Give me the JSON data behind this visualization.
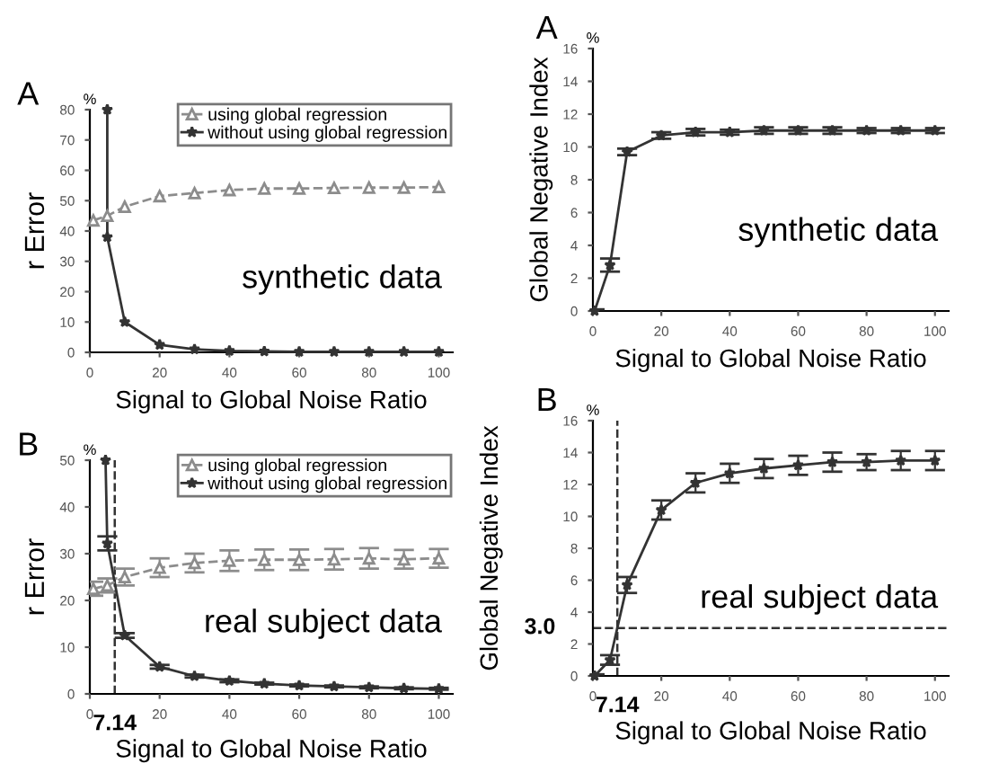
{
  "chart_data": [
    {
      "type": "line",
      "title": "A",
      "ylabel": "r Error",
      "xlabel": "Signal to Global Noise Ratio",
      "annotations": [
        "%",
        "synthetic data"
      ],
      "xlim": [
        0,
        104
      ],
      "ylim": [
        0,
        80
      ],
      "xticks": [
        0,
        20,
        40,
        60,
        80,
        100
      ],
      "yticks": [
        0,
        10,
        20,
        30,
        40,
        50,
        60,
        70,
        80
      ],
      "legend": "top right",
      "line_style": "solid",
      "series": [
        {
          "name": "using global regression",
          "color": "#8c8c8c",
          "marker": "triangle",
          "line_style": "dashed",
          "x": [
            1,
            5,
            10,
            20,
            30,
            40,
            50,
            60,
            70,
            80,
            90,
            100
          ],
          "values": [
            43.5,
            45,
            48,
            51.5,
            52.5,
            53.5,
            54,
            54,
            54.2,
            54.3,
            54.3,
            54.5
          ]
        },
        {
          "name": "without using global regression",
          "color": "#333333",
          "marker": "star",
          "x": [
            5,
            5,
            10,
            20,
            30,
            40,
            50,
            60,
            70,
            80,
            90,
            100
          ],
          "values": [
            80,
            38,
            10,
            2.5,
            1,
            0.5,
            0.3,
            0.2,
            0.2,
            0.2,
            0.2,
            0.2
          ]
        }
      ]
    },
    {
      "type": "line",
      "title": "B",
      "ylabel": "r Error",
      "xlabel": "Signal to Global Noise Ratio",
      "annotations": [
        "%",
        "real subject data"
      ],
      "xlim": [
        0,
        104
      ],
      "ylim": [
        0,
        50
      ],
      "xticks": [
        0,
        20,
        40,
        60,
        80,
        100
      ],
      "yticks": [
        0,
        10,
        20,
        30,
        40,
        50
      ],
      "legend": "top right",
      "line_style": "solid",
      "ref_lines": [
        {
          "axis": "x",
          "value": 7.14,
          "label": "7.14",
          "line_style": "dashed",
          "color": "#333333"
        }
      ],
      "series": [
        {
          "name": "using global regression",
          "color": "#8c8c8c",
          "marker": "triangle",
          "line_style": "dashed",
          "x": [
            1,
            5,
            10,
            20,
            30,
            40,
            50,
            60,
            70,
            80,
            90,
            100
          ],
          "values": [
            22.5,
            23.2,
            25,
            27,
            28,
            28.5,
            28.7,
            28.7,
            28.8,
            29,
            28.8,
            29
          ],
          "errors": [
            1.5,
            1.5,
            1.8,
            2,
            2,
            2.2,
            2.2,
            2.2,
            2.2,
            2.2,
            2,
            2
          ]
        },
        {
          "name": "without using global regression",
          "color": "#333333",
          "marker": "star",
          "x": [
            4.5,
            5,
            10,
            20,
            30,
            40,
            50,
            60,
            70,
            80,
            90,
            100
          ],
          "values": [
            50,
            32.2,
            12.5,
            5.8,
            3.8,
            2.8,
            2.2,
            1.8,
            1.6,
            1.4,
            1.2,
            1.1
          ],
          "errors": [
            null,
            1.5,
            0.5,
            0.4,
            0.3,
            0.3,
            0.2,
            0.2,
            0.2,
            0.2,
            0.2,
            0.2
          ]
        }
      ]
    },
    {
      "type": "line",
      "title": "A",
      "ylabel": "Global Negative Index",
      "xlabel": "Signal to Global Noise Ratio",
      "annotations": [
        "%",
        "synthetic data"
      ],
      "xlim": [
        0,
        104
      ],
      "ylim": [
        0,
        16
      ],
      "xticks": [
        0,
        20,
        40,
        60,
        80,
        100
      ],
      "yticks": [
        0,
        2,
        4,
        6,
        8,
        10,
        12,
        14,
        16
      ],
      "line_style": "solid",
      "series": [
        {
          "color": "#333333",
          "marker": "star",
          "x": [
            0.5,
            5,
            10,
            20,
            30,
            40,
            50,
            60,
            70,
            80,
            90,
            100
          ],
          "values": [
            0,
            2.8,
            9.7,
            10.7,
            10.9,
            10.9,
            11,
            11,
            11,
            11,
            11,
            11
          ],
          "errors": [
            0.1,
            0.4,
            0.2,
            0.2,
            0.2,
            0.15,
            0.2,
            0.2,
            0.2,
            0.15,
            0.15,
            0.15
          ]
        }
      ]
    },
    {
      "type": "line",
      "title": "B",
      "ylabel": "Global Negative Index",
      "xlabel": "Signal to Global Noise Ratio",
      "annotations": [
        "%",
        "real subject data"
      ],
      "xlim": [
        0,
        104
      ],
      "ylim": [
        0,
        16
      ],
      "xticks": [
        0,
        20,
        40,
        60,
        80,
        100
      ],
      "yticks": [
        0,
        2,
        4,
        6,
        8,
        10,
        12,
        14,
        16
      ],
      "line_style": "solid",
      "ref_lines": [
        {
          "axis": "x",
          "value": 7.14,
          "label": "7.14",
          "line_style": "dashed",
          "color": "#333333"
        },
        {
          "axis": "y",
          "value": 3.0,
          "label": "3.0",
          "line_style": "dashed",
          "color": "#333333"
        }
      ],
      "series": [
        {
          "color": "#333333",
          "marker": "star",
          "x": [
            0.5,
            5,
            10,
            20,
            30,
            40,
            50,
            60,
            70,
            80,
            90,
            100
          ],
          "values": [
            0,
            1.0,
            5.7,
            10.4,
            12.1,
            12.7,
            13.0,
            13.2,
            13.4,
            13.4,
            13.5,
            13.5
          ],
          "errors": [
            0.1,
            0.3,
            0.5,
            0.6,
            0.6,
            0.6,
            0.6,
            0.6,
            0.6,
            0.5,
            0.6,
            0.6
          ]
        }
      ]
    }
  ]
}
